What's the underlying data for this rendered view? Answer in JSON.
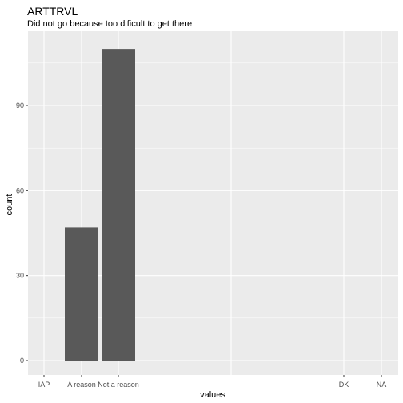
{
  "chart_data": {
    "type": "bar",
    "title": "ARTTRVL",
    "subtitle": "Did not go because too dificult to get there",
    "xlabel": "values",
    "ylabel": "count",
    "categories": [
      "IAP",
      "A reason",
      "Not a reason",
      "DK",
      "NA"
    ],
    "values": [
      0,
      47,
      110,
      0,
      0
    ],
    "yticks": [
      0,
      30,
      60,
      90
    ],
    "ylim": [
      0,
      115
    ],
    "grid": true,
    "bar_color": "#595959",
    "panel_color": "#ebebeb",
    "grid_color": "#ffffff"
  }
}
